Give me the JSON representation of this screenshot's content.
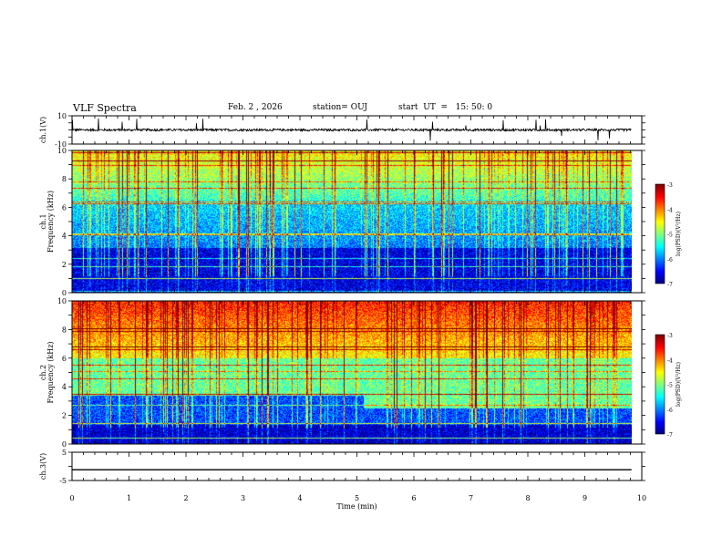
{
  "header": {
    "title": "VLF Spectra",
    "date": "Feb. 2 , 2026",
    "station": "station= OUJ",
    "start": "start  UT  =   15: 50: 0"
  },
  "chart_data": [
    {
      "type": "line",
      "name": "ch1-waveform",
      "ylabel": "ch.1(V)",
      "ylim": [
        -10,
        10
      ],
      "yticks": [
        "10",
        "-10"
      ],
      "xlim": [
        0,
        10
      ],
      "description_values": {
        "baseline": 0
      }
    },
    {
      "type": "heatmap",
      "name": "ch1-spectrogram",
      "ylabel_line1": "ch.1",
      "ylabel_line2": "Frequency  (kHz)",
      "ylim": [
        0,
        10
      ],
      "yticks": [
        "0",
        "2",
        "4",
        "6",
        "8",
        "10"
      ],
      "xlim": [
        0,
        10
      ],
      "data_end_min": 9.82,
      "colorbar": {
        "label": "log(PSD)(V²/Hz)",
        "range": [
          -7,
          -3
        ],
        "ticks": [
          "-3",
          "-4",
          "-5",
          "-6",
          "-7"
        ]
      }
    },
    {
      "type": "heatmap",
      "name": "ch2-spectrogram",
      "ylabel_line1": "ch.2",
      "ylabel_line2": "Frequency  (kHz)",
      "ylim": [
        0,
        10
      ],
      "yticks": [
        "0",
        "2",
        "4",
        "6",
        "8",
        "10"
      ],
      "xlim": [
        0,
        10
      ],
      "data_end_min": 9.82,
      "colorbar": {
        "label": "log(PSD)(V²/Hz)",
        "range": [
          -7,
          -3
        ],
        "ticks": [
          "-3",
          "-4",
          "-5",
          "-6",
          "-7"
        ]
      }
    },
    {
      "type": "line",
      "name": "ch3-waveform",
      "ylabel": "ch.3(V)",
      "ylim": [
        -5,
        5
      ],
      "yticks": [
        "5",
        "-5"
      ],
      "xlim": [
        0,
        10
      ],
      "xlabel": "Time  (min)",
      "xticks": [
        "0",
        "1",
        "2",
        "3",
        "4",
        "5",
        "6",
        "7",
        "8",
        "9",
        "10"
      ],
      "values": [
        {
          "x": 0,
          "y": -1.2
        },
        {
          "x": 9.82,
          "y": -1.2
        }
      ]
    }
  ],
  "colors": {
    "axis": "#000000",
    "background": "#ffffff",
    "colormap": [
      "#00007f",
      "#0000ff",
      "#007fff",
      "#00ffff",
      "#7fff7f",
      "#ffff00",
      "#ff7f00",
      "#ff0000",
      "#ffc0c0"
    ]
  }
}
